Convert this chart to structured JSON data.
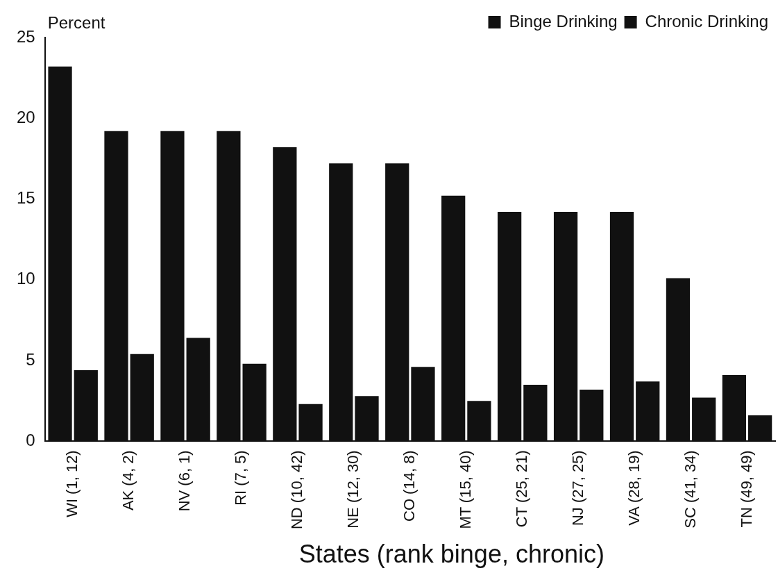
{
  "chart_data": {
    "type": "bar",
    "xlabel": "States (rank binge, chronic)",
    "ylabel": "Percent",
    "categories": [
      "WI (1, 12)",
      "AK (4, 2)",
      "NV (6, 1)",
      "RI (7, 5)",
      "ND (10, 42)",
      "NE (12, 30)",
      "CO (14, 8)",
      "MT (15, 40)",
      "CT (25, 21)",
      "NJ (27, 25)",
      "VA (28, 19)",
      "SC (41, 34)",
      "TN (49, 49)"
    ],
    "series": [
      {
        "name": "Binge Drinking",
        "color": "#111111",
        "values": [
          23.2,
          19.2,
          19.2,
          19.2,
          18.2,
          17.2,
          17.2,
          15.2,
          14.2,
          14.2,
          14.2,
          10.1,
          4.1
        ]
      },
      {
        "name": "Chronic Drinking",
        "color": "#111111",
        "values": [
          4.4,
          5.4,
          6.4,
          4.8,
          2.3,
          2.8,
          4.6,
          2.5,
          3.5,
          3.2,
          3.7,
          2.7,
          1.6
        ]
      }
    ],
    "ylim": [
      0,
      25
    ],
    "yticks": [
      0,
      5,
      10,
      15,
      20,
      25
    ],
    "grid": false,
    "legend": "top right"
  }
}
